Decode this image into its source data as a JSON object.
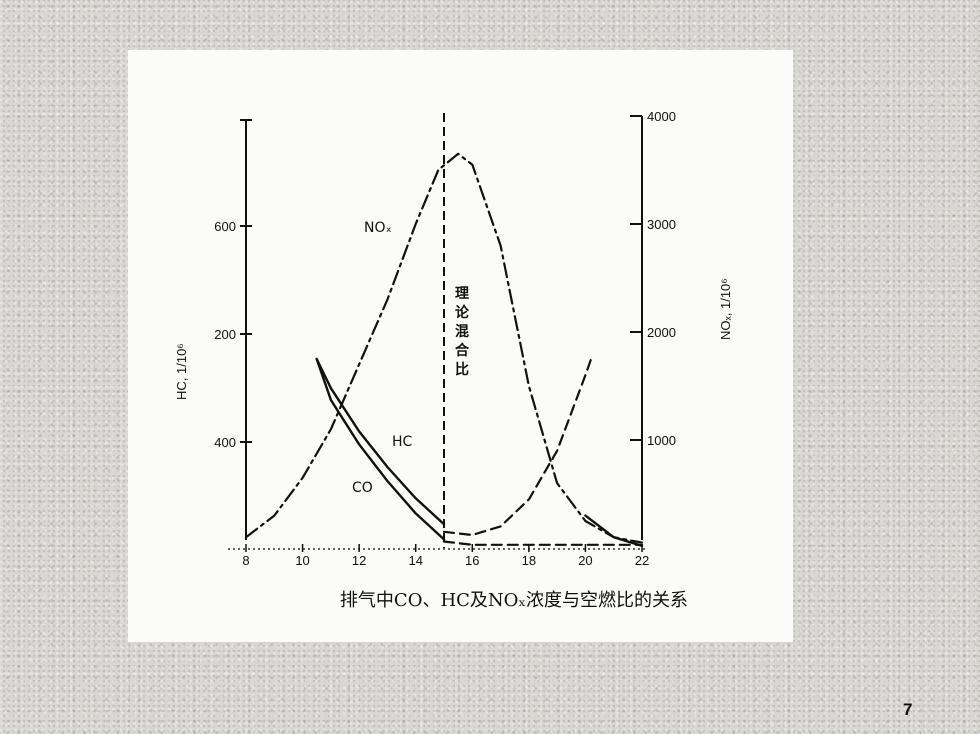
{
  "page": {
    "number": "7"
  },
  "chart_data": {
    "type": "line",
    "title": "排气中CO、HC及NOₓ浓度与空燃比的关系",
    "xlabel": "",
    "xlim": [
      8,
      22
    ],
    "x_ticks": [
      8,
      10,
      12,
      14,
      16,
      18,
      20,
      22
    ],
    "left_axis": {
      "label": "HC, 1/10⁶",
      "tick_labels": [
        "600",
        "200",
        "400"
      ]
    },
    "right_axis": {
      "label": "NOₓ, 1/10⁶",
      "ylim": [
        0,
        4000
      ],
      "tick_values": [
        1000,
        2000,
        3000,
        4000
      ],
      "tick_labels": [
        "1000",
        "2000",
        "3000",
        "4000"
      ]
    },
    "stoichiometric": {
      "x": 15,
      "label": "理论混合比"
    },
    "series": [
      {
        "name": "NOₓ",
        "style": "dash-dot",
        "points": [
          [
            8,
            100
          ],
          [
            9,
            300
          ],
          [
            10,
            650
          ],
          [
            11,
            1100
          ],
          [
            12,
            1700
          ],
          [
            13,
            2300
          ],
          [
            14,
            3000
          ],
          [
            14.8,
            3500
          ],
          [
            15.5,
            3650
          ],
          [
            16,
            3550
          ],
          [
            17,
            2800
          ],
          [
            18,
            1500
          ],
          [
            19,
            600
          ],
          [
            20,
            250
          ],
          [
            21,
            100
          ],
          [
            22,
            50
          ]
        ]
      },
      {
        "name": "HC",
        "style": "solid",
        "points": [
          [
            10.5,
            1750
          ],
          [
            11,
            1480
          ],
          [
            12,
            1080
          ],
          [
            13,
            750
          ],
          [
            14,
            460
          ],
          [
            15,
            220
          ]
        ]
      },
      {
        "name": "CO",
        "style": "solid",
        "points": [
          [
            10.5,
            1750
          ],
          [
            11,
            1370
          ],
          [
            12,
            960
          ],
          [
            13,
            620
          ],
          [
            14,
            320
          ],
          [
            15,
            80
          ]
        ]
      },
      {
        "name": "",
        "style": "solid",
        "points": [
          [
            20,
            300
          ],
          [
            21,
            100
          ],
          [
            22,
            20
          ]
        ]
      },
      {
        "name": "",
        "style": "dashed",
        "points": [
          [
            15,
            150
          ],
          [
            16,
            120
          ],
          [
            17,
            200
          ],
          [
            18,
            450
          ],
          [
            19,
            900
          ],
          [
            20,
            1600
          ],
          [
            20.2,
            1750
          ]
        ]
      },
      {
        "name": "",
        "style": "dashed",
        "points": [
          [
            15,
            60
          ],
          [
            16,
            30
          ],
          [
            18,
            30
          ],
          [
            20,
            30
          ],
          [
            22,
            30
          ]
        ]
      }
    ]
  }
}
